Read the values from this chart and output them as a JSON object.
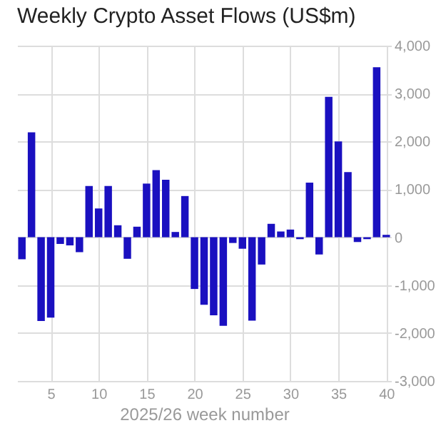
{
  "chart_data": {
    "type": "bar",
    "title": "Weekly Crypto Asset Flows (US$m)",
    "xlabel": "2025/26 week number",
    "x": [
      2,
      3,
      4,
      5,
      6,
      7,
      8,
      9,
      10,
      11,
      12,
      13,
      14,
      15,
      16,
      17,
      18,
      19,
      20,
      21,
      22,
      23,
      24,
      25,
      26,
      27,
      28,
      29,
      30,
      31,
      32,
      33,
      34,
      35,
      36,
      37,
      38,
      39,
      40
    ],
    "values": [
      -460,
      2190,
      -1750,
      -1680,
      -140,
      -170,
      -310,
      1070,
      600,
      1070,
      250,
      -450,
      220,
      1120,
      1400,
      1200,
      110,
      860,
      -1080,
      -1410,
      -1630,
      -1850,
      -120,
      -240,
      -1740,
      -570,
      280,
      120,
      160,
      -40,
      1140,
      -360,
      2930,
      2000,
      1360,
      -100,
      -40,
      3550,
      50
    ],
    "color": "#1a10c0",
    "xlim": [
      1.5,
      40.5
    ],
    "xticks": [
      5,
      10,
      15,
      20,
      25,
      30,
      35,
      40
    ],
    "ylim": [
      -3000,
      4000
    ],
    "yticks": [
      {
        "value": -3000,
        "label": "-3,000"
      },
      {
        "value": -2000,
        "label": "-2,000"
      },
      {
        "value": -1000,
        "label": "-1,000"
      },
      0,
      {
        "value": 1000,
        "label": "1,000"
      },
      {
        "value": 2000,
        "label": "2,000"
      },
      {
        "value": 3000,
        "label": "3,000"
      },
      {
        "value": 4000,
        "label": "4,000"
      }
    ],
    "grid": true
  }
}
